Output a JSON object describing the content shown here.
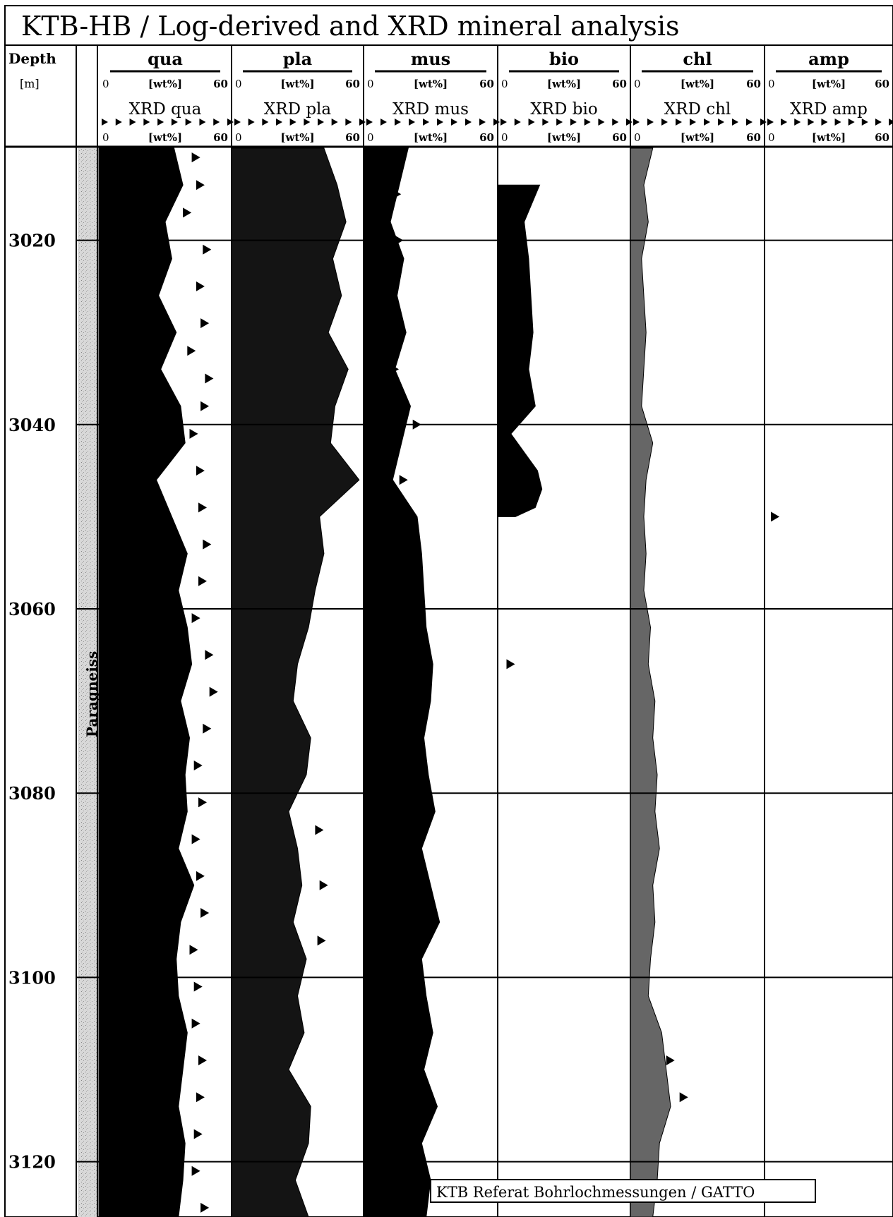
{
  "title": "KTB-HB / Log-derived and XRD mineral analysis",
  "footer_note": "KTB Referat Bohrlochmessungen / GATTO",
  "lithology_label": "Paragneiss",
  "chart_data": {
    "type": "area",
    "title": "KTB-HB / Log-derived and XRD mineral analysis",
    "depth_axis": {
      "label": "Depth",
      "unit": "[m]",
      "range": [
        3010,
        3126
      ],
      "ticks": [
        3020,
        3040,
        3060,
        3080,
        3100,
        3120
      ],
      "grid": true
    },
    "tracks": [
      {
        "name": "qua",
        "xrd_label": "XRD qua",
        "unit": "[wt%]",
        "range": [
          0,
          60
        ],
        "fill": "#000000",
        "log": {
          "depth": [
            3010,
            3014,
            3018,
            3022,
            3026,
            3030,
            3034,
            3038,
            3042,
            3046,
            3050,
            3054,
            3058,
            3062,
            3066,
            3070,
            3074,
            3078,
            3082,
            3086,
            3090,
            3094,
            3098,
            3102,
            3106,
            3110,
            3114,
            3118,
            3122,
            3126
          ],
          "values": [
            34,
            38,
            30,
            33,
            27,
            35,
            28,
            37,
            39,
            26,
            33,
            40,
            36,
            40,
            42,
            37,
            41,
            39,
            40,
            36,
            43,
            37,
            35,
            36,
            40,
            38,
            36,
            39,
            38,
            36
          ]
        },
        "xrd": {
          "depth": [
            3011,
            3014,
            3017,
            3021,
            3025,
            3029,
            3032,
            3035,
            3038,
            3041,
            3045,
            3049,
            3053,
            3057,
            3061,
            3065,
            3069,
            3073,
            3077,
            3081,
            3085,
            3089,
            3093,
            3097,
            3101,
            3105,
            3109,
            3113,
            3117,
            3121,
            3125
          ],
          "values": [
            42,
            44,
            38,
            47,
            44,
            46,
            40,
            48,
            46,
            41,
            44,
            45,
            47,
            45,
            42,
            48,
            50,
            47,
            43,
            45,
            42,
            44,
            46,
            41,
            43,
            42,
            45,
            44,
            43,
            42,
            46
          ]
        }
      },
      {
        "name": "pla",
        "xrd_label": "XRD pla",
        "unit": "[wt%]",
        "range": [
          0,
          60
        ],
        "fill": "#141414",
        "log": {
          "depth": [
            3010,
            3014,
            3018,
            3022,
            3026,
            3030,
            3034,
            3038,
            3042,
            3046,
            3050,
            3054,
            3058,
            3062,
            3066,
            3070,
            3074,
            3078,
            3082,
            3086,
            3090,
            3094,
            3098,
            3102,
            3106,
            3110,
            3114,
            3118,
            3122,
            3126
          ],
          "values": [
            42,
            48,
            52,
            46,
            50,
            44,
            53,
            47,
            45,
            58,
            40,
            42,
            38,
            35,
            30,
            28,
            36,
            34,
            26,
            30,
            32,
            28,
            34,
            30,
            33,
            26,
            36,
            35,
            29,
            35
          ]
        },
        "xrd": {
          "depth": [
            3084,
            3090,
            3096
          ],
          "values": [
            38,
            40,
            39
          ]
        }
      },
      {
        "name": "mus",
        "xrd_label": "XRD mus",
        "unit": "[wt%]",
        "range": [
          0,
          60
        ],
        "fill": "#000000",
        "log": {
          "depth": [
            3010,
            3014,
            3018,
            3022,
            3026,
            3030,
            3034,
            3038,
            3042,
            3046,
            3050,
            3054,
            3058,
            3062,
            3066,
            3070,
            3074,
            3078,
            3082,
            3086,
            3090,
            3094,
            3098,
            3102,
            3106,
            3110,
            3114,
            3118,
            3122,
            3126
          ],
          "values": [
            20,
            16,
            12,
            18,
            15,
            19,
            14,
            21,
            17,
            13,
            24,
            26,
            27,
            28,
            31,
            30,
            27,
            29,
            32,
            26,
            30,
            34,
            26,
            28,
            31,
            27,
            33,
            26,
            30,
            28
          ]
        },
        "xrd": {
          "depth": [
            3015,
            3020,
            3034,
            3040,
            3046,
            3113
          ],
          "values": [
            13,
            14,
            12,
            22,
            16,
            22
          ]
        }
      },
      {
        "name": "bio",
        "xrd_label": "XRD bio",
        "unit": "[wt%]",
        "range": [
          0,
          60
        ],
        "fill": "#000000",
        "log": {
          "depth": [
            3014,
            3018,
            3022,
            3026,
            3030,
            3034,
            3038,
            3041,
            3043,
            3045,
            3047,
            3049,
            3050
          ],
          "values": [
            19,
            12,
            14,
            15,
            16,
            14,
            17,
            6,
            12,
            18,
            20,
            17,
            8
          ]
        },
        "xrd": {
          "depth": [
            3066
          ],
          "values": [
            4
          ]
        }
      },
      {
        "name": "chl",
        "xrd_label": "XRD chl",
        "unit": "[wt%]",
        "range": [
          0,
          60
        ],
        "fill": "#666666",
        "log": {
          "depth": [
            3010,
            3014,
            3018,
            3022,
            3026,
            3030,
            3034,
            3038,
            3042,
            3046,
            3050,
            3054,
            3058,
            3062,
            3066,
            3070,
            3074,
            3078,
            3082,
            3086,
            3090,
            3094,
            3098,
            3102,
            3106,
            3110,
            3114,
            3118,
            3122,
            3126
          ],
          "values": [
            10,
            6,
            8,
            5,
            6,
            7,
            6,
            5,
            10,
            7,
            6,
            7,
            6,
            9,
            8,
            11,
            10,
            12,
            11,
            13,
            10,
            11,
            9,
            8,
            14,
            16,
            18,
            13,
            12,
            10
          ]
        },
        "xrd": {
          "depth": [
            3109,
            3113
          ],
          "values": [
            16,
            22
          ]
        }
      },
      {
        "name": "amp",
        "xrd_label": "XRD amp",
        "unit": "[wt%]",
        "range": [
          0,
          60
        ],
        "fill": "#000000",
        "log": {
          "depth": [],
          "values": []
        },
        "xrd": {
          "depth": [
            3050
          ],
          "values": [
            3
          ]
        }
      }
    ]
  }
}
